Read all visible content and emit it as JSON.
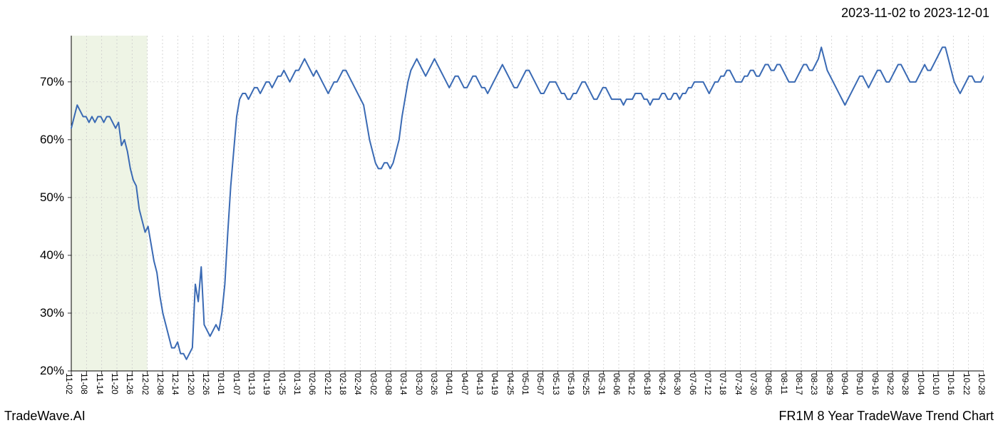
{
  "date_range": "2023-11-02 to 2023-12-01",
  "footer_left": "TradeWave.AI",
  "footer_right": "FR1M 8 Year TradeWave Trend Chart",
  "chart": {
    "type": "line",
    "line_color": "#3a6ab4",
    "line_width": 2,
    "background_color": "#ffffff",
    "grid_color": "#cccccc",
    "grid_dash": "2,3",
    "axis_color": "#000000",
    "highlight_band": {
      "x_start_index": 0,
      "x_end_index": 5,
      "fill": "#e8f0dc",
      "opacity": 0.75
    },
    "ylim": [
      20,
      78
    ],
    "yticks": [
      20,
      30,
      40,
      50,
      60,
      70
    ],
    "ytick_format": "%",
    "x_labels": [
      "11-02",
      "11-08",
      "11-14",
      "11-20",
      "11-26",
      "12-02",
      "12-08",
      "12-14",
      "12-20",
      "12-26",
      "01-01",
      "01-07",
      "01-13",
      "01-19",
      "01-25",
      "01-31",
      "02-06",
      "02-12",
      "02-18",
      "02-24",
      "03-02",
      "03-08",
      "03-14",
      "03-20",
      "03-26",
      "04-01",
      "04-07",
      "04-13",
      "04-19",
      "04-25",
      "05-01",
      "05-07",
      "05-13",
      "05-19",
      "05-25",
      "05-31",
      "06-06",
      "06-12",
      "06-18",
      "06-24",
      "06-30",
      "07-06",
      "07-12",
      "07-18",
      "07-24",
      "07-30",
      "08-05",
      "08-11",
      "08-17",
      "08-23",
      "08-29",
      "09-04",
      "09-10",
      "09-16",
      "09-22",
      "09-28",
      "10-04",
      "10-10",
      "10-16",
      "10-22",
      "10-28"
    ],
    "values": [
      62,
      64,
      66,
      65,
      64,
      64,
      63,
      64,
      63,
      64,
      64,
      63,
      64,
      64,
      63,
      62,
      63,
      59,
      60,
      58,
      55,
      53,
      52,
      48,
      46,
      44,
      45,
      42,
      39,
      37,
      33,
      30,
      28,
      26,
      24,
      24,
      25,
      23,
      23,
      22,
      23,
      24,
      35,
      32,
      38,
      28,
      27,
      26,
      27,
      28,
      27,
      30,
      35,
      44,
      52,
      58,
      64,
      67,
      68,
      68,
      67,
      68,
      69,
      69,
      68,
      69,
      70,
      70,
      69,
      70,
      71,
      71,
      72,
      71,
      70,
      71,
      72,
      72,
      73,
      74,
      73,
      72,
      71,
      72,
      71,
      70,
      69,
      68,
      69,
      70,
      70,
      71,
      72,
      72,
      71,
      70,
      69,
      68,
      67,
      66,
      63,
      60,
      58,
      56,
      55,
      55,
      56,
      56,
      55,
      56,
      58,
      60,
      64,
      67,
      70,
      72,
      73,
      74,
      73,
      72,
      71,
      72,
      73,
      74,
      73,
      72,
      71,
      70,
      69,
      70,
      71,
      71,
      70,
      69,
      69,
      70,
      71,
      71,
      70,
      69,
      69,
      68,
      69,
      70,
      71,
      72,
      73,
      72,
      71,
      70,
      69,
      69,
      70,
      71,
      72,
      72,
      71,
      70,
      69,
      68,
      68,
      69,
      70,
      70,
      70,
      69,
      68,
      68,
      67,
      67,
      68,
      68,
      69,
      70,
      70,
      69,
      68,
      67,
      67,
      68,
      69,
      69,
      68,
      67,
      67,
      67,
      67,
      66,
      67,
      67,
      67,
      68,
      68,
      68,
      67,
      67,
      66,
      67,
      67,
      67,
      68,
      68,
      67,
      67,
      68,
      68,
      67,
      68,
      68,
      69,
      69,
      70,
      70,
      70,
      70,
      69,
      68,
      69,
      70,
      70,
      71,
      71,
      72,
      72,
      71,
      70,
      70,
      70,
      71,
      71,
      72,
      72,
      71,
      71,
      72,
      73,
      73,
      72,
      72,
      73,
      73,
      72,
      71,
      70,
      70,
      70,
      71,
      72,
      73,
      73,
      72,
      72,
      73,
      74,
      76,
      74,
      72,
      71,
      70,
      69,
      68,
      67,
      66,
      67,
      68,
      69,
      70,
      71,
      71,
      70,
      69,
      70,
      71,
      72,
      72,
      71,
      70,
      70,
      71,
      72,
      73,
      73,
      72,
      71,
      70,
      70,
      70,
      71,
      72,
      73,
      72,
      72,
      73,
      74,
      75,
      76,
      76,
      74,
      72,
      70,
      69,
      68,
      69,
      70,
      71,
      71,
      70,
      70,
      70,
      71
    ]
  }
}
